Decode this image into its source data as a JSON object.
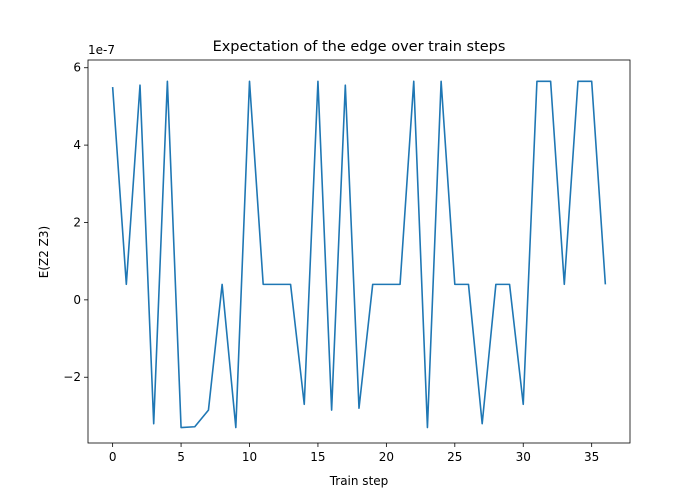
{
  "chart_data": {
    "type": "line",
    "title": "Expectation of the edge over train steps",
    "xlabel": "Train step",
    "ylabel": "E(Z2 Z3)",
    "y_offset_label": "1e-7",
    "xlim": [
      -1.8,
      37.8
    ],
    "ylim": [
      -3.7,
      6.2
    ],
    "x_ticks": [
      0,
      5,
      10,
      15,
      20,
      25,
      30,
      35
    ],
    "y_ticks": [
      -2,
      0,
      2,
      4,
      6
    ],
    "y_tick_labels": [
      "−2",
      "0",
      "2",
      "4",
      "6"
    ],
    "grid": false,
    "legend": "none",
    "series": [
      {
        "color": "#1f77b4",
        "x": [
          0,
          1,
          2,
          3,
          4,
          5,
          6,
          7,
          8,
          9,
          10,
          11,
          12,
          13,
          14,
          15,
          16,
          17,
          18,
          19,
          20,
          21,
          22,
          23,
          24,
          25,
          26,
          27,
          28,
          29,
          30,
          31,
          32,
          33,
          34,
          35,
          36
        ],
        "y": [
          5.5,
          0.4,
          5.55,
          -3.2,
          5.65,
          -3.3,
          -3.28,
          -2.85,
          0.4,
          -3.3,
          5.65,
          0.4,
          0.4,
          0.4,
          -2.7,
          5.65,
          -2.85,
          5.55,
          -2.8,
          0.4,
          0.4,
          0.4,
          5.65,
          -3.3,
          5.65,
          0.4,
          0.4,
          -3.2,
          0.4,
          0.4,
          -2.7,
          5.65,
          5.65,
          0.4,
          5.65,
          5.65,
          0.4
        ]
      }
    ]
  }
}
